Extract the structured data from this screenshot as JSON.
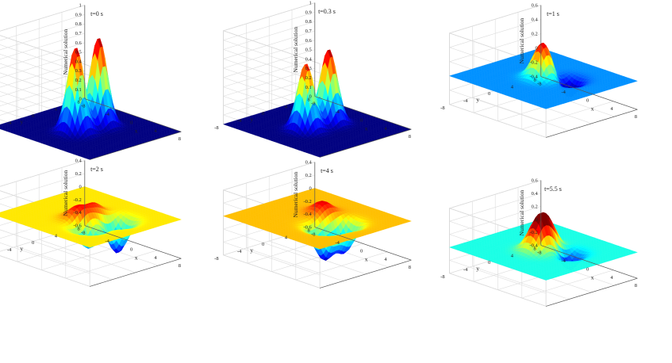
{
  "chart_data": [
    {
      "type": "surface3d",
      "title": "t=0 s",
      "xlabel": "x",
      "ylabel": "y",
      "zlabel": "Numerical solution",
      "xlim": [
        -8,
        8
      ],
      "ylim": [
        -8,
        8
      ],
      "zlim": [
        0,
        1
      ],
      "x_ticks": [
        -8,
        -4,
        0,
        4,
        8
      ],
      "y_ticks": [
        -8,
        -4,
        0,
        4,
        8
      ],
      "z_ticks": [
        "0",
        "0.1",
        "0.2",
        "0.3",
        "0.4",
        "0.5",
        "0.6",
        "0.7",
        "0.8",
        "0.9",
        "1"
      ],
      "colormap": "jet",
      "color_limits": [
        0,
        0.95
      ],
      "surface": "two tall narrow peaks near the origin on a flat base",
      "peaks": [
        {
          "x": 0,
          "y": -2,
          "z": 0.92
        },
        {
          "x": 0,
          "y": 2,
          "z": 0.95
        }
      ]
    },
    {
      "type": "surface3d",
      "title": "t=0.3 s",
      "xlabel": "x",
      "ylabel": "y",
      "zlabel": "Numerical solution",
      "xlim": [
        -8,
        8
      ],
      "ylim": [
        -8,
        8
      ],
      "zlim": [
        0,
        1
      ],
      "x_ticks": [
        -8,
        -4,
        0,
        4,
        8
      ],
      "y_ticks": [
        -8,
        -4,
        0,
        4,
        8
      ],
      "z_ticks": [
        "0",
        "0.1",
        "0.2",
        "0.3",
        "0.4",
        "0.5",
        "0.6",
        "0.7",
        "0.8",
        "0.9",
        "1"
      ],
      "colormap": "jet",
      "color_limits": [
        0,
        0.8
      ],
      "surface": "two merged peaks on a broad base",
      "peaks": [
        {
          "x": 0,
          "y": -2,
          "z": 0.72
        },
        {
          "x": 0,
          "y": 2,
          "z": 0.8
        }
      ]
    },
    {
      "type": "surface3d",
      "title": "t=1 s",
      "xlabel": "x",
      "ylabel": "y",
      "zlabel": "Numerical solution",
      "xlim": [
        -8,
        8
      ],
      "ylim": [
        -8,
        8
      ],
      "zlim": [
        -0.4,
        0.6
      ],
      "x_ticks": [
        -8,
        -4,
        0,
        4,
        8
      ],
      "y_ticks": [
        -8,
        -4,
        0,
        4,
        8
      ],
      "z_ticks": [
        "-0.4",
        "-0.2",
        "0",
        "0.2",
        "0.4",
        "0.6"
      ],
      "colormap": "jet",
      "color_limits": [
        -0.2,
        0.55
      ],
      "surface": "single central peak with small dip below zero",
      "peaks": [
        {
          "x": 0,
          "y": 0,
          "z": 0.52
        },
        {
          "x": 2,
          "y": 2,
          "z": -0.28
        }
      ]
    },
    {
      "type": "surface3d",
      "title": "t=2 s",
      "xlabel": "x",
      "ylabel": "y",
      "zlabel": "Numerical solution",
      "xlim": [
        -8,
        8
      ],
      "ylim": [
        -8,
        8
      ],
      "zlim": [
        -0.6,
        0.4
      ],
      "x_ticks": [
        -8,
        -4,
        0,
        4,
        8
      ],
      "y_ticks": [
        -8,
        -4,
        0,
        4,
        8
      ],
      "z_ticks": [
        "-0.6",
        "-0.4",
        "-0.2",
        "0",
        "0.2",
        "0.4"
      ],
      "colormap": "jet",
      "color_limits": [
        -0.55,
        0.3
      ],
      "surface": "two peaks with ring and two deep troughs",
      "peaks": [
        {
          "x": 0,
          "y": -1.5,
          "z": 0.22
        },
        {
          "x": 0,
          "y": 1.5,
          "z": 0.18
        },
        {
          "x": 2.5,
          "y": -2.5,
          "z": -0.35
        },
        {
          "x": 3,
          "y": 2,
          "z": -0.52
        }
      ]
    },
    {
      "type": "surface3d",
      "title": "t=4 s",
      "xlabel": "x",
      "ylabel": "y",
      "zlabel": "Numerical solution",
      "xlim": [
        -8,
        8
      ],
      "ylim": [
        -8,
        8
      ],
      "zlim": [
        -0.6,
        0.4
      ],
      "x_ticks": [
        -8,
        -4,
        0,
        4,
        8
      ],
      "y_ticks": [
        -8,
        -4,
        0,
        4,
        8
      ],
      "z_ticks": [
        "-0.6",
        "-0.4",
        "-0.2",
        "0",
        "0.2",
        "0.4"
      ],
      "colormap": "jet",
      "color_limits": [
        -0.55,
        0.25
      ],
      "surface": "ring-shaped ripple with one peak and two troughs",
      "peaks": [
        {
          "x": -1,
          "y": 2,
          "z": 0.18
        },
        {
          "x": 2.5,
          "y": -1.5,
          "z": -0.5
        },
        {
          "x": 3,
          "y": 1.5,
          "z": -0.45
        }
      ]
    },
    {
      "type": "surface3d",
      "title": "t=5.5 s",
      "xlabel": "x",
      "ylabel": "y",
      "zlabel": "Numerical solution",
      "xlim": [
        -8,
        8
      ],
      "ylim": [
        -8,
        8
      ],
      "zlim": [
        -0.4,
        0.6
      ],
      "x_ticks": [
        -8,
        -4,
        0,
        4,
        8
      ],
      "y_ticks": [
        -8,
        -4,
        0,
        4,
        8
      ],
      "z_ticks": [
        "-0.4",
        "-0.2",
        "0",
        "0.2",
        "0.4",
        "0.6"
      ],
      "colormap": "jet",
      "color_limits": [
        -0.3,
        0.45
      ],
      "surface": "central double peak with outer ring and a trough",
      "peaks": [
        {
          "x": 0,
          "y": -1,
          "z": 0.42
        },
        {
          "x": 0,
          "y": 1,
          "z": 0.4
        },
        {
          "x": 2.5,
          "y": 1.5,
          "z": -0.3
        }
      ]
    }
  ]
}
